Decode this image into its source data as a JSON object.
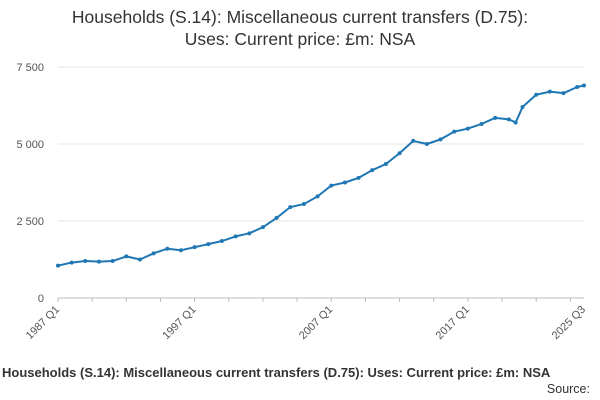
{
  "chart_data": {
    "type": "line",
    "title_lines": [
      "Households (S.14): Miscellaneous current transfers (D.75):",
      "Uses: Current price: £m: NSA"
    ],
    "xlabel": "",
    "ylabel": "",
    "ylim": [
      0,
      7500
    ],
    "yticks": [
      "0",
      "2 500",
      "5 000",
      "7 500"
    ],
    "xtick_labels": [
      "1987 Q1",
      "1997 Q1",
      "2007 Q1",
      "2017 Q1",
      "2025 Q3"
    ],
    "grid": true,
    "legend_position": "bottom",
    "series": [
      {
        "name": "Households (S.14): Miscellaneous current transfers (D.75): Uses: Current price: £m: NSA",
        "color": "#1f77b4",
        "x": [
          "1987",
          "1988",
          "1989",
          "1990",
          "1991",
          "1992",
          "1993",
          "1994",
          "1995",
          "1996",
          "1997",
          "1998",
          "1999",
          "2000",
          "2001",
          "2002",
          "2003",
          "2004",
          "2005",
          "2006",
          "2007",
          "2008",
          "2009",
          "2010",
          "2011",
          "2012",
          "2013",
          "2014",
          "2015",
          "2016",
          "2017",
          "2018",
          "2019",
          "2020",
          "2020.5",
          "2021",
          "2022",
          "2023",
          "2024",
          "2025",
          "2025.5"
        ],
        "values": [
          1050,
          1150,
          1200,
          1180,
          1200,
          1350,
          1250,
          1450,
          1600,
          1550,
          1650,
          1750,
          1850,
          2000,
          2100,
          2300,
          2600,
          2950,
          3050,
          3300,
          3650,
          3750,
          3900,
          4150,
          4350,
          4700,
          5100,
          5000,
          5150,
          5400,
          5500,
          5650,
          5850,
          5800,
          5700,
          6200,
          6600,
          6700,
          6650,
          6850,
          6900
        ]
      }
    ]
  },
  "legend_text": "Households (S.14): Miscellaneous current transfers (D.75): Uses: Current price: £m: NSA",
  "source_text": "Source:"
}
